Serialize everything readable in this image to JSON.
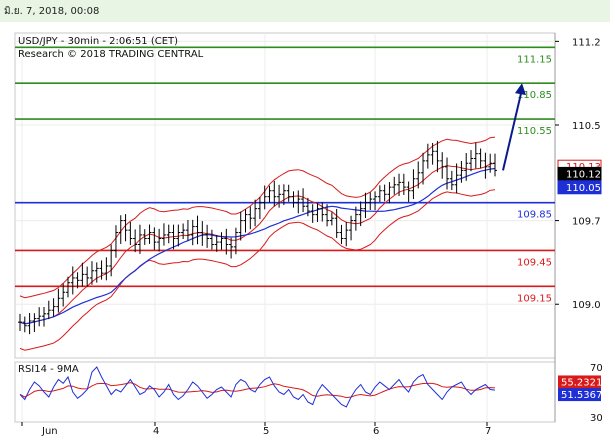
{
  "header": {
    "timestamp": "มิ.ย. 7, 2018, 00:08"
  },
  "chart_data": {
    "type": "candlestick",
    "title": "USD/JPY - 30min - 2:06:51 (CET)",
    "subtitle": "Research © 2018 TRADING CENTRAL",
    "ylim": [
      108.55,
      111.27
    ],
    "y_ticks": [
      "111.2",
      "110.5",
      "109.7",
      "109.0"
    ],
    "y_tick_values": [
      111.2,
      110.5,
      109.7,
      109.0
    ],
    "x_ticks": [
      "Jun",
      "4",
      "5",
      "6",
      "7"
    ],
    "levels": [
      {
        "label": "111.15",
        "value": 111.15,
        "color": "#2e8b1e"
      },
      {
        "label": "110.85",
        "value": 110.85,
        "color": "#2e8b1e"
      },
      {
        "label": "110.55",
        "value": 110.55,
        "color": "#2e8b1e"
      },
      {
        "label": "109.85",
        "value": 109.85,
        "color": "#1f2fd6"
      },
      {
        "label": "109.45",
        "value": 109.45,
        "color": "#d81a1a"
      },
      {
        "label": "109.15",
        "value": 109.15,
        "color": "#d81a1a"
      }
    ],
    "price_badges": [
      {
        "label": "110.13",
        "value": 110.13,
        "bg": "#ffffff",
        "fg": "#d81a1a",
        "border": "#d81a1a"
      },
      {
        "label": "110.12",
        "value": 110.12,
        "bg": "#000000",
        "fg": "#ffffff",
        "border": "#000000"
      },
      {
        "label": "110.05",
        "value": 110.05,
        "bg": "#1f2fd6",
        "fg": "#ffffff",
        "border": "#1f2fd6"
      }
    ],
    "close_series": [
      108.85,
      108.82,
      108.86,
      108.88,
      108.9,
      108.92,
      108.95,
      108.98,
      109.05,
      109.1,
      109.18,
      109.22,
      109.2,
      109.25,
      109.22,
      109.28,
      109.3,
      109.26,
      109.32,
      109.45,
      109.6,
      109.7,
      109.62,
      109.55,
      109.5,
      109.58,
      109.55,
      109.6,
      109.52,
      109.55,
      109.58,
      109.6,
      109.55,
      109.6,
      109.62,
      109.58,
      109.65,
      109.6,
      109.58,
      109.55,
      109.5,
      109.52,
      109.55,
      109.5,
      109.48,
      109.6,
      109.7,
      109.75,
      109.72,
      109.8,
      109.85,
      109.9,
      109.95,
      109.9,
      109.92,
      109.95,
      109.9,
      109.85,
      109.88,
      109.82,
      109.78,
      109.75,
      109.8,
      109.75,
      109.7,
      109.72,
      109.6,
      109.55,
      109.62,
      109.7,
      109.75,
      109.8,
      109.85,
      109.88,
      109.9,
      109.95,
      109.92,
      109.98,
      110.0,
      110.02,
      109.98,
      109.95,
      110.05,
      110.1,
      110.2,
      110.25,
      110.28,
      110.2,
      110.15,
      110.05,
      110.0,
      110.08,
      110.12,
      110.18,
      110.22,
      110.26,
      110.2,
      110.15,
      110.18,
      110.12
    ],
    "arrow_target": 110.85,
    "rsi": {
      "label": "RSI14 - 9MA",
      "ylim": [
        30,
        70
      ],
      "ticks": [
        "70",
        "30"
      ],
      "badges": [
        {
          "label": "55.2321",
          "value": 55.2321,
          "bg": "#d81a1a",
          "fg": "#ffffff"
        },
        {
          "label": "51.5367",
          "value": 51.5367,
          "bg": "#1f2fd6",
          "fg": "#ffffff"
        }
      ],
      "values": [
        48,
        44,
        52,
        58,
        55,
        50,
        46,
        54,
        60,
        57,
        62,
        50,
        45,
        48,
        52,
        66,
        70,
        62,
        55,
        48,
        52,
        50,
        55,
        60,
        54,
        48,
        50,
        55,
        52,
        46,
        50,
        56,
        48,
        44,
        47,
        52,
        58,
        55,
        50,
        45,
        48,
        52,
        54,
        50,
        46,
        56,
        60,
        58,
        52,
        50,
        56,
        60,
        62,
        55,
        50,
        48,
        52,
        46,
        44,
        48,
        42,
        40,
        50,
        56,
        52,
        48,
        44,
        40,
        38,
        46,
        52,
        56,
        50,
        48,
        54,
        58,
        55,
        52,
        56,
        60,
        54,
        50,
        58,
        62,
        64,
        56,
        52,
        48,
        44,
        50,
        54,
        56,
        58,
        52,
        48,
        52,
        54,
        56,
        52,
        51.5
      ]
    }
  }
}
